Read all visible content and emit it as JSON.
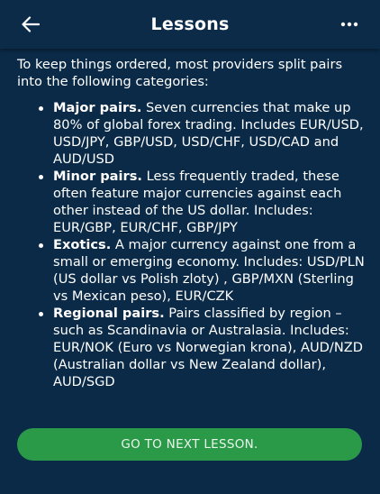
{
  "app_bar": {
    "title": "Lessons",
    "back_icon": "arrow-left-icon",
    "more_icon": "more-horizontal-icon"
  },
  "lesson": {
    "intro": "To keep things ordered, most providers split pairs into the following categories:",
    "items": [
      {
        "term": "Major pairs.",
        "text": " Seven currencies that make up 80% of global forex trading. Includes EUR/USD, USD/JPY, GBP/USD, USD/CHF, USD/CAD and AUD/USD"
      },
      {
        "term": "Minor pairs.",
        "text": " Less frequently traded, these often feature major currencies against each other instead of the US dollar. Includes: EUR/GBP, EUR/CHF, GBP/JPY"
      },
      {
        "term": "Exotics.",
        "text": " A major currency against one from a small or emerging economy. Includes: USD/PLN (US dollar vs Polish zloty) , GBP/MXN (Sterling vs Mexican peso), EUR/CZK"
      },
      {
        "term": "Regional pairs.",
        "text": " Pairs classified by region – such as Scandinavia or Australasia. Includes: EUR/NOK (Euro vs Norwegian krona), AUD/NZD (Australian dollar vs New Zealand dollar), AUD/SGD"
      }
    ]
  },
  "footer": {
    "next_label": "GO TO NEXT LESSON."
  },
  "colors": {
    "background": "#0a2a47",
    "app_bar": "#0c2b49",
    "button": "#2b9a48",
    "text": "#ffffff"
  }
}
